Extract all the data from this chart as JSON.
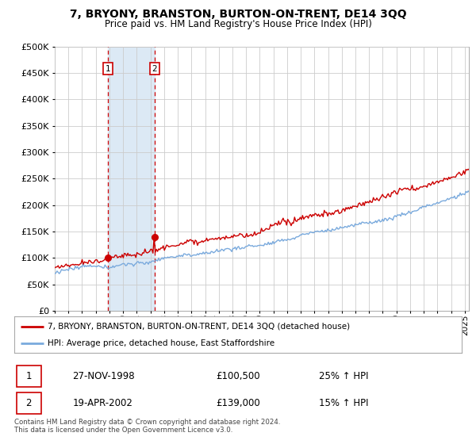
{
  "title": "7, BRYONY, BRANSTON, BURTON-ON-TRENT, DE14 3QQ",
  "subtitle": "Price paid vs. HM Land Registry's House Price Index (HPI)",
  "legend_line1": "7, BRYONY, BRANSTON, BURTON-ON-TRENT, DE14 3QQ (detached house)",
  "legend_line2": "HPI: Average price, detached house, East Staffordshire",
  "footer": "Contains HM Land Registry data © Crown copyright and database right 2024.\nThis data is licensed under the Open Government Licence v3.0.",
  "sale1_date": "27-NOV-1998",
  "sale1_price": "£100,500",
  "sale1_hpi": "25% ↑ HPI",
  "sale2_date": "19-APR-2002",
  "sale2_price": "£139,000",
  "sale2_hpi": "15% ↑ HPI",
  "red_color": "#cc0000",
  "blue_color": "#7aaadd",
  "shade_color": "#dce9f5",
  "grid_color": "#cccccc",
  "ylim": [
    0,
    500000
  ],
  "yticks": [
    0,
    50000,
    100000,
    150000,
    200000,
    250000,
    300000,
    350000,
    400000,
    450000,
    500000
  ],
  "sale1_x": 1998.9,
  "sale1_y": 100500,
  "sale2_x": 2002.3,
  "sale2_y": 139000,
  "xmin": 1995.3,
  "xmax": 2025.3
}
